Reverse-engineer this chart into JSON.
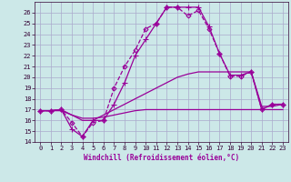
{
  "xlabel": "Windchill (Refroidissement éolien,°C)",
  "xlim": [
    -0.5,
    23.5
  ],
  "ylim": [
    14,
    27
  ],
  "yticks": [
    14,
    15,
    16,
    17,
    18,
    19,
    20,
    21,
    22,
    23,
    24,
    25,
    26
  ],
  "xticks": [
    0,
    1,
    2,
    3,
    4,
    5,
    6,
    7,
    8,
    9,
    10,
    11,
    12,
    13,
    14,
    15,
    16,
    17,
    18,
    19,
    20,
    21,
    22,
    23
  ],
  "background_color": "#cce8e8",
  "grid_color": "#aaaacc",
  "line_color": "#990099",
  "series": [
    {
      "x": [
        0,
        1,
        2,
        3,
        4,
        5,
        6,
        7,
        8,
        9,
        10,
        11,
        12,
        13,
        14,
        15,
        16,
        17,
        18,
        19,
        20,
        21,
        22,
        23
      ],
      "y": [
        16.9,
        16.9,
        16.9,
        16.5,
        16.2,
        16.2,
        16.3,
        16.5,
        16.7,
        16.9,
        17.0,
        17.0,
        17.0,
        17.0,
        17.0,
        17.0,
        17.0,
        17.0,
        17.0,
        17.0,
        17.0,
        17.0,
        17.0,
        17.0
      ],
      "marker": null,
      "linestyle": "-",
      "linewidth": 0.9
    },
    {
      "x": [
        0,
        1,
        2,
        3,
        4,
        5,
        6,
        7,
        8,
        9,
        10,
        11,
        12,
        13,
        14,
        15,
        16,
        17,
        18,
        19,
        20,
        21,
        22,
        23
      ],
      "y": [
        16.9,
        16.9,
        17.0,
        16.5,
        16.0,
        16.0,
        16.5,
        17.0,
        17.5,
        18.0,
        18.5,
        19.0,
        19.5,
        20.0,
        20.3,
        20.5,
        20.5,
        20.5,
        20.5,
        20.5,
        20.5,
        17.3,
        17.3,
        17.5
      ],
      "marker": null,
      "linestyle": "-",
      "linewidth": 0.9
    },
    {
      "x": [
        0,
        1,
        2,
        3,
        4,
        5,
        6,
        7,
        8,
        9,
        10,
        11,
        12,
        13,
        14,
        15,
        16,
        17,
        18,
        19,
        20,
        21,
        22,
        23
      ],
      "y": [
        16.9,
        16.9,
        17.0,
        15.8,
        14.5,
        15.8,
        16.0,
        19.0,
        21.0,
        22.5,
        24.5,
        25.0,
        26.5,
        26.5,
        25.7,
        26.2,
        24.5,
        22.2,
        20.1,
        20.1,
        20.5,
        17.0,
        17.5,
        17.5
      ],
      "marker": "D",
      "linestyle": "--",
      "linewidth": 0.9
    },
    {
      "x": [
        0,
        1,
        2,
        3,
        4,
        5,
        6,
        7,
        8,
        9,
        10,
        11,
        12,
        13,
        14,
        15,
        16,
        17,
        18,
        19,
        20,
        21,
        22,
        23
      ],
      "y": [
        16.9,
        16.9,
        17.0,
        15.2,
        14.5,
        16.0,
        16.0,
        17.5,
        19.5,
        22.0,
        23.5,
        25.0,
        26.5,
        26.5,
        26.5,
        26.5,
        24.7,
        22.2,
        20.2,
        20.2,
        20.5,
        17.0,
        17.5,
        17.5
      ],
      "marker": "+",
      "linestyle": "-",
      "linewidth": 0.9
    }
  ]
}
